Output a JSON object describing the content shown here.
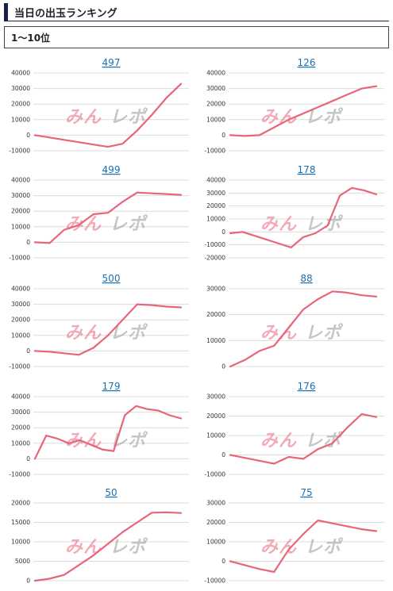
{
  "header": {
    "title": "当日の出玉ランキング"
  },
  "section": {
    "label": "1～10位"
  },
  "colors": {
    "accent": "#1a1f4a",
    "line": "#e8657a",
    "link": "#1a6fb0",
    "grid": "#dcdcdc"
  },
  "chart_data": [
    {
      "type": "line",
      "title": "497",
      "ylim": [
        -10000,
        40000
      ],
      "yticks": [
        -10000,
        0,
        10000,
        20000,
        30000,
        40000
      ],
      "x": [
        0,
        1,
        2,
        3,
        4,
        5,
        6,
        7,
        8,
        9,
        10
      ],
      "series": [
        {
          "values": [
            0,
            -1500,
            -3000,
            -4500,
            -6000,
            -7500,
            -5500,
            3000,
            13000,
            24000,
            33000
          ]
        }
      ]
    },
    {
      "type": "line",
      "title": "126",
      "ylim": [
        -10000,
        40000
      ],
      "yticks": [
        -10000,
        0,
        10000,
        20000,
        30000,
        40000
      ],
      "x": [
        0,
        1,
        2,
        3,
        4,
        5,
        6,
        7,
        8,
        9,
        10
      ],
      "series": [
        {
          "values": [
            0,
            -500,
            0,
            5000,
            10000,
            14000,
            18000,
            22000,
            26000,
            30000,
            31500
          ]
        }
      ]
    },
    {
      "type": "line",
      "title": "499",
      "ylim": [
        -10000,
        40000
      ],
      "yticks": [
        -10000,
        0,
        10000,
        20000,
        30000,
        40000
      ],
      "x": [
        0,
        1,
        2,
        3,
        4,
        5,
        6,
        7,
        8,
        9,
        10
      ],
      "series": [
        {
          "values": [
            0,
            -500,
            8000,
            11000,
            18000,
            19000,
            26000,
            32000,
            31500,
            31000,
            30500
          ]
        }
      ]
    },
    {
      "type": "line",
      "title": "178",
      "ylim": [
        -20000,
        40000
      ],
      "yticks": [
        -20000,
        -10000,
        0,
        10000,
        20000,
        30000,
        40000
      ],
      "x": [
        0,
        1,
        2,
        3,
        4,
        5,
        6,
        7,
        8,
        9,
        10,
        11,
        12
      ],
      "series": [
        {
          "values": [
            -1000,
            0,
            -3000,
            -6000,
            -9000,
            -12000,
            -4000,
            -1000,
            5000,
            28000,
            34000,
            32000,
            29000
          ]
        }
      ]
    },
    {
      "type": "line",
      "title": "500",
      "ylim": [
        -10000,
        40000
      ],
      "yticks": [
        -10000,
        0,
        10000,
        20000,
        30000,
        40000
      ],
      "x": [
        0,
        1,
        2,
        3,
        4,
        5,
        6,
        7,
        8,
        9,
        10
      ],
      "series": [
        {
          "values": [
            0,
            -500,
            -1500,
            -2500,
            2000,
            10000,
            20000,
            30000,
            29500,
            28500,
            28000
          ]
        }
      ]
    },
    {
      "type": "line",
      "title": "88",
      "ylim": [
        0,
        30000
      ],
      "yticks": [
        0,
        10000,
        20000,
        30000
      ],
      "x": [
        0,
        1,
        2,
        3,
        4,
        5,
        6,
        7,
        8,
        9,
        10
      ],
      "series": [
        {
          "values": [
            0,
            2500,
            6000,
            8000,
            15000,
            22000,
            26000,
            29000,
            28500,
            27500,
            27000
          ]
        }
      ]
    },
    {
      "type": "line",
      "title": "179",
      "ylim": [
        -10000,
        40000
      ],
      "yticks": [
        -10000,
        0,
        10000,
        20000,
        30000,
        40000
      ],
      "x": [
        0,
        1,
        2,
        3,
        4,
        5,
        6,
        7,
        8,
        9,
        10,
        11,
        12,
        13
      ],
      "series": [
        {
          "values": [
            0,
            15000,
            13000,
            10000,
            12000,
            9000,
            6000,
            5000,
            28000,
            34000,
            32000,
            31000,
            28000,
            26000
          ]
        }
      ]
    },
    {
      "type": "line",
      "title": "176",
      "ylim": [
        -10000,
        30000
      ],
      "yticks": [
        -10000,
        0,
        10000,
        20000,
        30000
      ],
      "x": [
        0,
        1,
        2,
        3,
        4,
        5,
        6,
        7,
        8,
        9,
        10
      ],
      "series": [
        {
          "values": [
            0,
            -1500,
            -3000,
            -4500,
            -1000,
            -2000,
            3000,
            6000,
            14000,
            21000,
            19500
          ]
        }
      ]
    },
    {
      "type": "line",
      "title": "50",
      "ylim": [
        0,
        20000
      ],
      "yticks": [
        0,
        5000,
        10000,
        15000,
        20000
      ],
      "x": [
        0,
        1,
        2,
        3,
        4,
        5,
        6,
        7,
        8,
        9,
        10
      ],
      "series": [
        {
          "values": [
            0,
            500,
            1500,
            4000,
            6500,
            9500,
            12500,
            15000,
            17500,
            17600,
            17400
          ]
        }
      ]
    },
    {
      "type": "line",
      "title": "75",
      "ylim": [
        -10000,
        30000
      ],
      "yticks": [
        -10000,
        0,
        10000,
        20000,
        30000
      ],
      "x": [
        0,
        1,
        2,
        3,
        4,
        5,
        6,
        7,
        8,
        9,
        10
      ],
      "series": [
        {
          "values": [
            0,
            -2000,
            -4000,
            -5500,
            6000,
            14000,
            21000,
            19500,
            18000,
            16500,
            15500
          ]
        }
      ]
    }
  ]
}
